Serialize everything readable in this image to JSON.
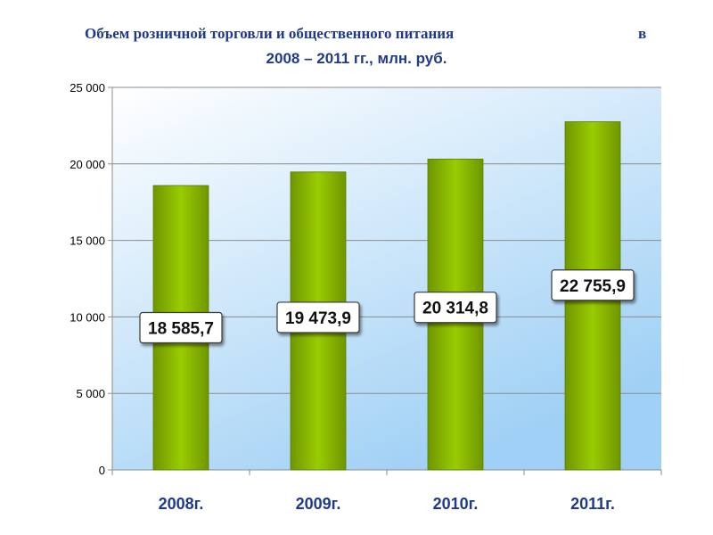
{
  "title_line1_main": "Объем розничной торговли и общественного питания",
  "title_line1_right": "в",
  "title_line2": "2008 – 2011 гг., млн. руб.",
  "colors": {
    "bar": "#99cc00",
    "bar_dark": "#6f9600",
    "title": "#1f3a8a",
    "grid": "#8c8c8c",
    "plot_bg_top": "#ffffff",
    "plot_bg_bottom": "#9fd0f5"
  },
  "chart_data": {
    "type": "bar",
    "title": "Объем розничной торговли и общественного питания в 2008 – 2011 гг., млн. руб.",
    "categories": [
      "2008г.",
      "2009г.",
      "2010г.",
      "2011г."
    ],
    "values": [
      18585.7,
      19473.9,
      20314.8,
      22755.9
    ],
    "data_labels": [
      "18 585,7",
      "19 473,9",
      "20 314,8",
      "22 755,9"
    ],
    "ylim": [
      0,
      25000
    ],
    "y_ticks": [
      0,
      5000,
      10000,
      15000,
      20000,
      25000
    ],
    "y_tick_labels": [
      "0",
      "5 000",
      "10 000",
      "15 000",
      "20 000",
      "25 000"
    ],
    "grid": true,
    "legend": "none"
  }
}
